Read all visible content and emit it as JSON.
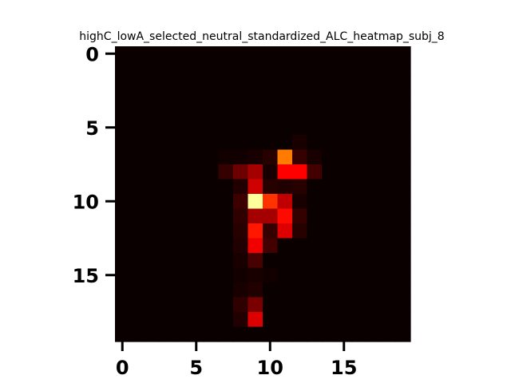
{
  "chart_data": {
    "type": "heatmap",
    "title": "highC_lowA_selected_neutral_standardized_ALC_heatmap_subj_8",
    "xlabel": "",
    "ylabel": "",
    "colormap": "hot",
    "rows": 20,
    "cols": 20,
    "xlim": [
      -0.5,
      19.5
    ],
    "ylim": [
      19.5,
      -0.5
    ],
    "x_ticks": [
      0,
      5,
      10,
      15
    ],
    "x_tick_labels": [
      "0",
      "5",
      "10",
      "15"
    ],
    "y_ticks": [
      0,
      5,
      10,
      15
    ],
    "y_tick_labels": [
      "0",
      "5",
      "10",
      "15"
    ],
    "grid": false,
    "colorbar": false,
    "values": [
      [
        0,
        0,
        0,
        0,
        0,
        0,
        0,
        0,
        0,
        0,
        0,
        0,
        0,
        0,
        0,
        0,
        0,
        0,
        0,
        0
      ],
      [
        0,
        0,
        0,
        0,
        0,
        0,
        0,
        0,
        0,
        0,
        0,
        0,
        0,
        0,
        0,
        0,
        0,
        0,
        0,
        0
      ],
      [
        0,
        0,
        0,
        0,
        0,
        0,
        0,
        0,
        0,
        0,
        0,
        0,
        0,
        0,
        0,
        0,
        0,
        0,
        0,
        0
      ],
      [
        0,
        0,
        0,
        0,
        0,
        0,
        0,
        0,
        0,
        0,
        0,
        0,
        0,
        0,
        0,
        0,
        0,
        0,
        0,
        0
      ],
      [
        0,
        0,
        0,
        0,
        0,
        0,
        0,
        0,
        0,
        0,
        0,
        0,
        0,
        0,
        0,
        0,
        0,
        0,
        0,
        0
      ],
      [
        0,
        0,
        0,
        0,
        0,
        0,
        0,
        0,
        0,
        0,
        0,
        0,
        0,
        0,
        0,
        0,
        0,
        0,
        0,
        0
      ],
      [
        0,
        0,
        0,
        0,
        0,
        0,
        0,
        0,
        0,
        0,
        0,
        0,
        0.02,
        0,
        0,
        0,
        0,
        0,
        0,
        0
      ],
      [
        0,
        0,
        0,
        0,
        0,
        0,
        0,
        0.01,
        0.01,
        0.02,
        0.04,
        0.55,
        0.06,
        0.02,
        0,
        0,
        0,
        0,
        0,
        0
      ],
      [
        0,
        0,
        0,
        0,
        0,
        0,
        0,
        0.06,
        0.14,
        0.22,
        0.02,
        0.36,
        0.36,
        0.08,
        0,
        0,
        0,
        0,
        0,
        0
      ],
      [
        0,
        0,
        0,
        0,
        0,
        0,
        0,
        0,
        0.03,
        0.28,
        0.04,
        0.03,
        0.04,
        0,
        0,
        0,
        0,
        0,
        0,
        0
      ],
      [
        0,
        0,
        0,
        0,
        0,
        0,
        0,
        0,
        0.07,
        0.9,
        0.44,
        0.26,
        0.02,
        0,
        0,
        0,
        0,
        0,
        0,
        0
      ],
      [
        0,
        0,
        0,
        0,
        0,
        0,
        0,
        0,
        0.05,
        0.22,
        0.22,
        0.38,
        0.06,
        0,
        0,
        0,
        0,
        0,
        0,
        0
      ],
      [
        0,
        0,
        0,
        0,
        0,
        0,
        0,
        0,
        0.04,
        0.4,
        0.06,
        0.3,
        0.04,
        0,
        0,
        0,
        0,
        0,
        0,
        0
      ],
      [
        0,
        0,
        0,
        0,
        0,
        0,
        0,
        0,
        0.03,
        0.33,
        0.08,
        0,
        0,
        0,
        0,
        0,
        0,
        0,
        0,
        0
      ],
      [
        0,
        0,
        0,
        0,
        0,
        0,
        0,
        0,
        0.02,
        0.09,
        0,
        0,
        0,
        0,
        0,
        0,
        0,
        0,
        0,
        0
      ],
      [
        0,
        0,
        0,
        0,
        0,
        0,
        0,
        0,
        0.01,
        0.02,
        0.01,
        0,
        0,
        0,
        0,
        0,
        0,
        0,
        0,
        0
      ],
      [
        0,
        0,
        0,
        0,
        0,
        0,
        0,
        0,
        0.02,
        0.03,
        0,
        0,
        0,
        0,
        0,
        0,
        0,
        0,
        0,
        0
      ],
      [
        0,
        0,
        0,
        0,
        0,
        0,
        0,
        0,
        0.05,
        0.16,
        0,
        0,
        0,
        0,
        0,
        0,
        0,
        0,
        0,
        0
      ],
      [
        0,
        0,
        0,
        0,
        0,
        0,
        0,
        0,
        0.03,
        0.3,
        0,
        0,
        0,
        0,
        0,
        0,
        0,
        0,
        0,
        0
      ],
      [
        0,
        0,
        0,
        0,
        0,
        0,
        0,
        0,
        0,
        0,
        0,
        0,
        0,
        0,
        0,
        0,
        0,
        0,
        0,
        0
      ]
    ]
  }
}
